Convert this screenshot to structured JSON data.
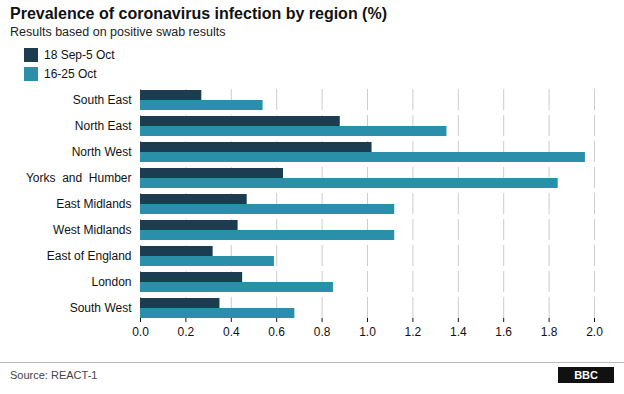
{
  "chart_data": {
    "type": "bar",
    "orientation": "horizontal",
    "title": "Prevalence of coronavirus infection by region (%)",
    "subtitle": "Results based on positive swab results",
    "source": "Source: REACT-1",
    "annotations": [
      "BBC"
    ],
    "categories": [
      "South East",
      "North East",
      "North West",
      "Yorks  and  Humber",
      "East Midlands",
      "West Midlands",
      "East of England",
      "London",
      "South West"
    ],
    "series": [
      {
        "name": "18 Sep-5 Oct",
        "color": "#1c3d4f",
        "values": [
          0.27,
          0.88,
          1.02,
          0.63,
          0.47,
          0.43,
          0.32,
          0.45,
          0.35
        ]
      },
      {
        "name": "16-25 Oct",
        "color": "#2a8fa8",
        "values": [
          0.54,
          1.35,
          1.96,
          1.84,
          1.12,
          1.12,
          0.59,
          0.85,
          0.68
        ]
      }
    ],
    "xlim": [
      0.0,
      2.0
    ],
    "xticks": [
      {
        "value": 0,
        "label": "0.0"
      },
      0.2,
      0.4,
      0.6,
      0.8,
      {
        "value": 1,
        "label": "1.0"
      },
      1.2,
      1.4,
      1.6,
      1.8,
      {
        "value": 2,
        "label": "2.0"
      }
    ],
    "grid": true,
    "legend": "top-left"
  }
}
